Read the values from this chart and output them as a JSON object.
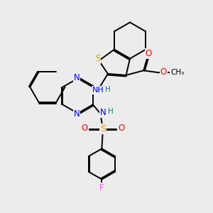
{
  "bg_color": "#ececec",
  "bond_color": "#000000",
  "bond_width": 1.4,
  "dbo": 0.055,
  "atom_colors": {
    "N": "#0000ff",
    "S": "#ccaa00",
    "O": "#ff0000",
    "F": "#ff44ff",
    "H": "#008080"
  },
  "layout": {
    "xlim": [
      0,
      10
    ],
    "ylim": [
      0,
      10
    ]
  }
}
